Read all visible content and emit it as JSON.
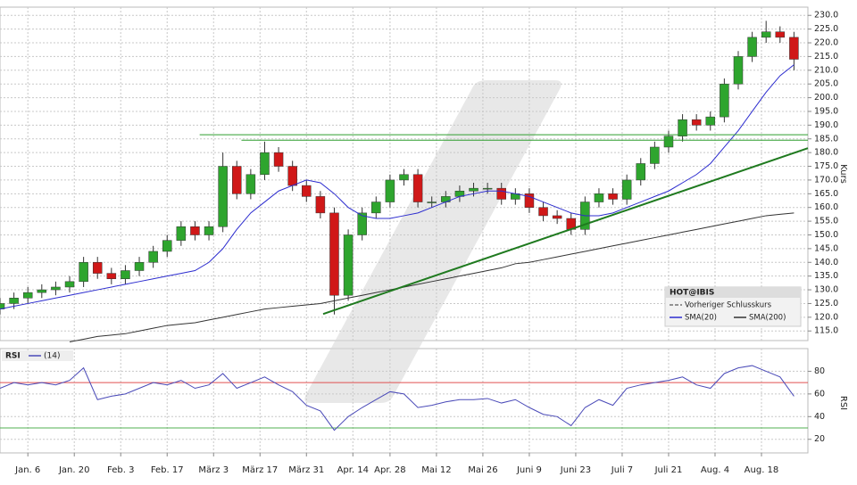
{
  "chart_data": [
    {
      "type": "candlestick",
      "y_label": "Kurs",
      "legend_title": "HOT@IBIS",
      "prev_close_label": "Vorheriger Schlusskurs",
      "up_color": "#2ea52e",
      "down_color": "#d01818",
      "grid": true,
      "xlim": [
        0,
        174
      ],
      "ylim": [
        111.5,
        233
      ],
      "yticks": [
        {
          "value": 115,
          "label": "115.0"
        },
        {
          "value": 120,
          "label": "120.0"
        },
        {
          "value": 125,
          "label": "125.0"
        },
        {
          "value": 130,
          "label": "130.0"
        },
        {
          "value": 135,
          "label": "135.0"
        },
        {
          "value": 140,
          "label": "140.0"
        },
        {
          "value": 145,
          "label": "145.0"
        },
        {
          "value": 150,
          "label": "150.0"
        },
        {
          "value": 155,
          "label": "155.0"
        },
        {
          "value": 160,
          "label": "160.0"
        },
        {
          "value": 165,
          "label": "165.0"
        },
        {
          "value": 170,
          "label": "170.0"
        },
        {
          "value": 175,
          "label": "175.0"
        },
        {
          "value": 180,
          "label": "180.0"
        },
        {
          "value": 185,
          "label": "185.0"
        },
        {
          "value": 190,
          "label": "190.0"
        },
        {
          "value": 195,
          "label": "195.0"
        },
        {
          "value": 200,
          "label": "200.0"
        },
        {
          "value": 205,
          "label": "205.0"
        },
        {
          "value": 210,
          "label": "210.0"
        },
        {
          "value": 215,
          "label": "215.0"
        },
        {
          "value": 220,
          "label": "220.0"
        },
        {
          "value": 225,
          "label": "225.0"
        },
        {
          "value": 230,
          "label": "230.0"
        }
      ],
      "x": [
        0,
        3,
        6,
        9,
        12,
        15,
        18,
        21,
        24,
        27,
        30,
        33,
        36,
        39,
        42,
        45,
        48,
        51,
        54,
        57,
        60,
        63,
        66,
        69,
        72,
        75,
        78,
        81,
        84,
        87,
        90,
        93,
        96,
        99,
        102,
        105,
        108,
        111,
        114,
        117,
        120,
        123,
        126,
        129,
        132,
        135,
        138,
        141,
        144,
        147,
        150,
        153,
        156,
        159,
        162,
        165,
        168,
        171
      ],
      "open": [
        123,
        125,
        127,
        129,
        130,
        131,
        133,
        140,
        136,
        134,
        137,
        140,
        144,
        148,
        153,
        150,
        153,
        175,
        165,
        172,
        180,
        175,
        168,
        164,
        158,
        128,
        150,
        158,
        162,
        170,
        172,
        162,
        162,
        164,
        166,
        167,
        167,
        163,
        165,
        160,
        157,
        156,
        152,
        162,
        165,
        163,
        170,
        176,
        182,
        186,
        192,
        190,
        193,
        205,
        215,
        222,
        224,
        222
      ],
      "high": [
        127,
        129,
        131,
        132,
        133,
        135,
        142,
        142,
        138,
        139,
        142,
        146,
        150,
        155,
        155,
        155,
        180,
        177,
        174,
        184,
        182,
        177,
        170,
        166,
        160,
        152,
        160,
        164,
        172,
        174,
        174,
        164,
        166,
        168,
        169,
        169,
        169,
        167,
        167,
        162,
        159,
        158,
        164,
        167,
        167,
        172,
        178,
        184,
        188,
        194,
        194,
        195,
        207,
        217,
        224,
        228,
        226,
        224
      ],
      "low": [
        121,
        123,
        125,
        127,
        128,
        129,
        131,
        134,
        132,
        132,
        135,
        138,
        142,
        146,
        148,
        148,
        151,
        163,
        163,
        170,
        173,
        166,
        162,
        156,
        121,
        126,
        148,
        156,
        160,
        168,
        160,
        160,
        160,
        162,
        164,
        165,
        161,
        161,
        158,
        155,
        154,
        150,
        150,
        160,
        161,
        161,
        168,
        174,
        180,
        184,
        188,
        188,
        191,
        203,
        213,
        220,
        220,
        210
      ],
      "close": [
        125,
        127,
        129,
        130,
        131,
        133,
        140,
        136,
        134,
        137,
        140,
        144,
        148,
        153,
        150,
        153,
        175,
        165,
        172,
        180,
        175,
        168,
        164,
        158,
        128,
        150,
        158,
        162,
        170,
        172,
        162,
        162,
        164,
        166,
        167,
        167,
        163,
        165,
        160,
        157,
        156,
        152,
        162,
        165,
        163,
        170,
        176,
        182,
        186,
        192,
        190,
        193,
        205,
        215,
        222,
        224,
        222,
        214
      ],
      "series": [
        {
          "name": "SMA(20)",
          "color": "#2c2ccf",
          "values": [
            123,
            124,
            125,
            126,
            127,
            128,
            129,
            130,
            131,
            132,
            133,
            134,
            135,
            136,
            137,
            140,
            145,
            152,
            158,
            162,
            166,
            168,
            170,
            169,
            165,
            160,
            157,
            156,
            156,
            157,
            158,
            160,
            162,
            164,
            165,
            166,
            166,
            165,
            164,
            162,
            160,
            158,
            157,
            157,
            158,
            160,
            162,
            164,
            166,
            169,
            172,
            176,
            182,
            188,
            195,
            202,
            208,
            212
          ]
        },
        {
          "name": "SMA(200)",
          "color": "#333333",
          "values": [
            null,
            null,
            null,
            null,
            null,
            111,
            112,
            113,
            113.5,
            114,
            115,
            116,
            117,
            117.5,
            118,
            119,
            120,
            121,
            122,
            123,
            123.5,
            124,
            124.5,
            125,
            126,
            127,
            128,
            129,
            130,
            131,
            132,
            133,
            134,
            135,
            136,
            137,
            138,
            139.5,
            140,
            141,
            142,
            143,
            144,
            145,
            146,
            147,
            148,
            149,
            150,
            151,
            152,
            153,
            154,
            155,
            156,
            157,
            157.5,
            158
          ]
        }
      ],
      "trendlines": [
        {
          "color": "#2e9e2e",
          "x": [
            43,
            174
          ],
          "y": [
            186.5,
            186.5
          ]
        },
        {
          "color": "#2e9e2e",
          "x": [
            52,
            174
          ],
          "y": [
            184.5,
            184.5
          ]
        },
        {
          "color": "#1f7a1f",
          "x": [
            69.6,
            174
          ],
          "y": [
            121.2,
            181.6
          ]
        }
      ]
    },
    {
      "type": "line",
      "title": "RSI",
      "y_label": "RSI",
      "grid": true,
      "xlim": [
        0,
        174
      ],
      "ylim": [
        8,
        100
      ],
      "yticks": [
        20,
        40,
        60,
        80
      ],
      "levels": [
        {
          "value": 70,
          "color": "#e05050"
        },
        {
          "value": 30,
          "color": "#50b050"
        }
      ],
      "xticks": [
        {
          "value": 6,
          "label": "Jan. 6"
        },
        {
          "value": 16,
          "label": "Jan. 20"
        },
        {
          "value": 26,
          "label": "Feb. 3"
        },
        {
          "value": 36,
          "label": "Feb. 17"
        },
        {
          "value": 46,
          "label": "März 3"
        },
        {
          "value": 56,
          "label": "März 17"
        },
        {
          "value": 66,
          "label": "März 31"
        },
        {
          "value": 76,
          "label": "Apr. 14"
        },
        {
          "value": 84,
          "label": "Apr. 28"
        },
        {
          "value": 94,
          "label": "Mai 12"
        },
        {
          "value": 104,
          "label": "Mai 26"
        },
        {
          "value": 114,
          "label": "Juni 9"
        },
        {
          "value": 124,
          "label": "Juni 23"
        },
        {
          "value": 134,
          "label": "Juli 7"
        },
        {
          "value": 144,
          "label": "Juli 21"
        },
        {
          "value": 154,
          "label": "Aug. 4"
        },
        {
          "value": 164,
          "label": "Aug. 18"
        }
      ],
      "x": [
        0,
        3,
        6,
        9,
        12,
        15,
        18,
        21,
        24,
        27,
        30,
        33,
        36,
        39,
        42,
        45,
        48,
        51,
        54,
        57,
        60,
        63,
        66,
        69,
        72,
        75,
        78,
        81,
        84,
        87,
        90,
        93,
        96,
        99,
        102,
        105,
        108,
        111,
        114,
        117,
        120,
        123,
        126,
        129,
        132,
        135,
        138,
        141,
        144,
        147,
        150,
        153,
        156,
        159,
        162,
        165,
        168,
        171
      ],
      "series": [
        {
          "name": "(14)",
          "color": "#4a4ab8",
          "values": [
            65,
            70,
            68,
            70,
            68,
            72,
            83,
            55,
            58,
            60,
            65,
            70,
            68,
            72,
            65,
            68,
            78,
            65,
            70,
            75,
            68,
            62,
            50,
            45,
            28,
            40,
            48,
            55,
            62,
            60,
            48,
            50,
            53,
            55,
            55,
            56,
            52,
            55,
            48,
            42,
            40,
            32,
            48,
            55,
            50,
            65,
            68,
            70,
            72,
            75,
            68,
            65,
            78,
            83,
            85,
            80,
            75,
            58
          ]
        }
      ]
    }
  ]
}
